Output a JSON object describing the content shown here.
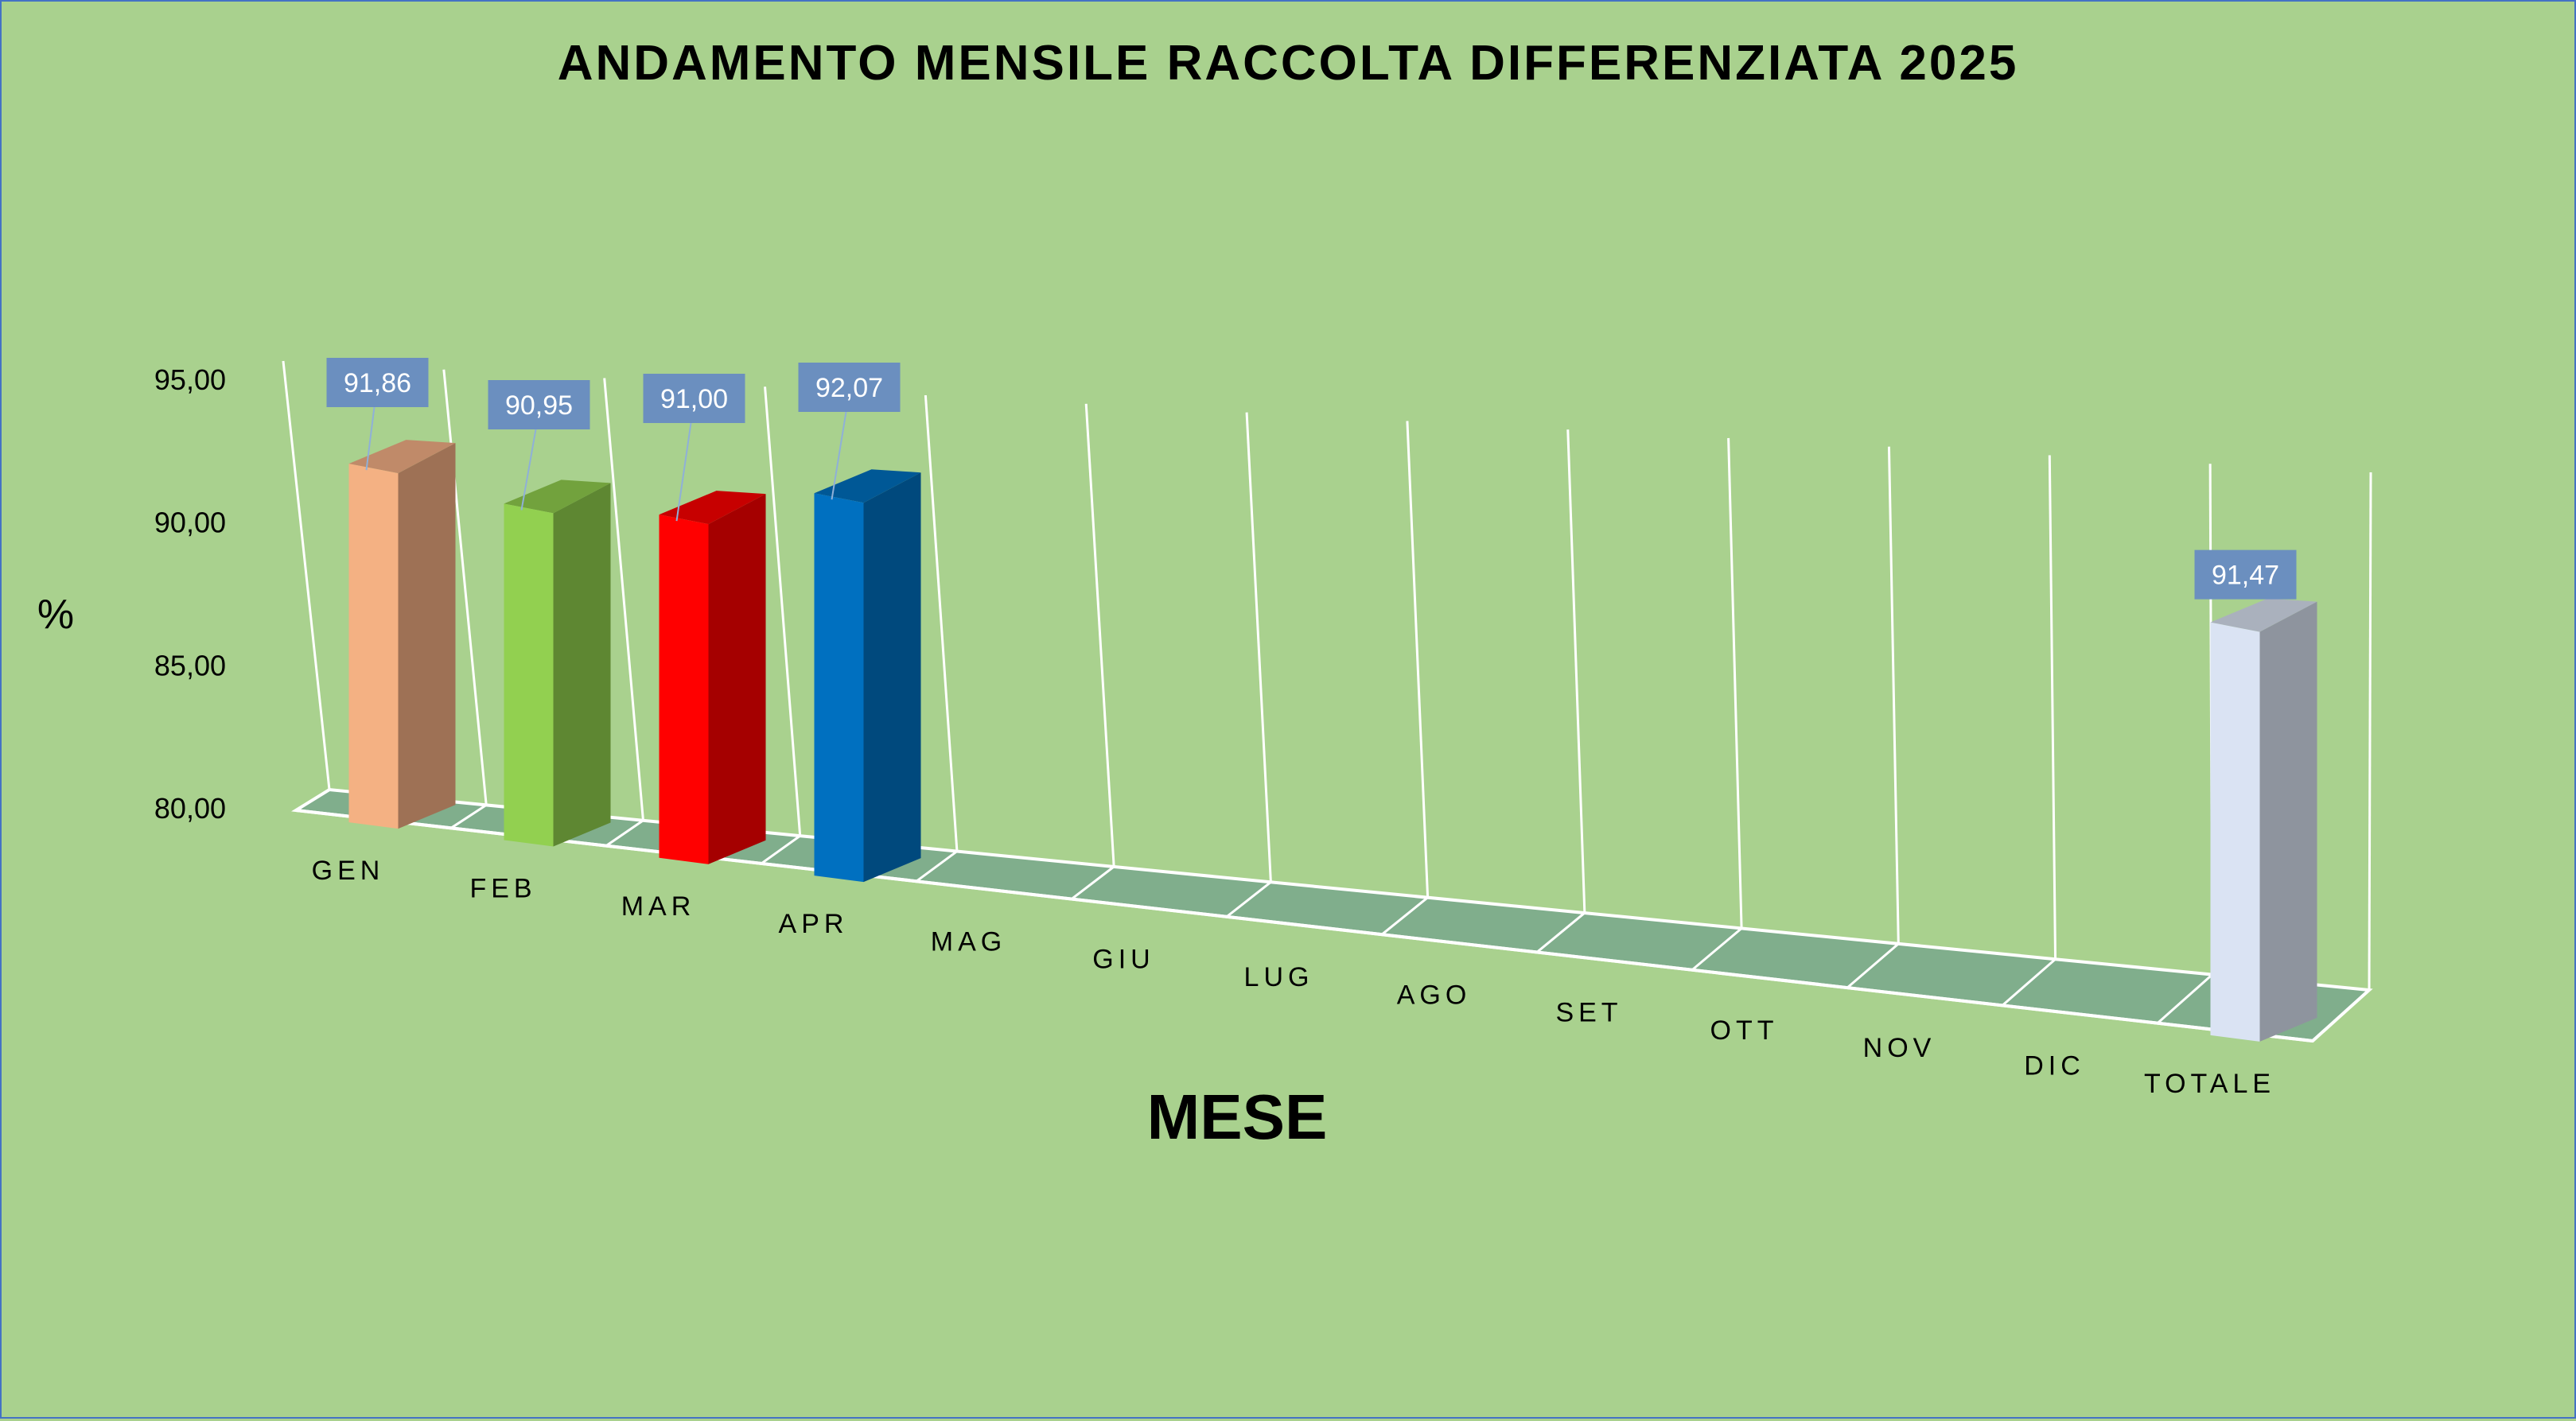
{
  "chart_data": {
    "type": "bar",
    "title": "ANDAMENTO MENSILE RACCOLTA DIFFERENZIATA 2025",
    "xlabel": "MESE",
    "ylabel": "%",
    "ylim": [
      80,
      95
    ],
    "y_ticks": [
      "80,00",
      "85,00",
      "90,00",
      "95,00"
    ],
    "categories": [
      "GEN",
      "FEB",
      "MAR",
      "APR",
      "MAG",
      "GIU",
      "LUG",
      "AGO",
      "SET",
      "OTT",
      "NOV",
      "DIC",
      "TOTALE"
    ],
    "values": [
      91.86,
      90.95,
      91.0,
      92.07,
      null,
      null,
      null,
      null,
      null,
      null,
      null,
      null,
      91.47
    ],
    "data_labels": [
      "91,86",
      "90,95",
      "91,00",
      "92,07",
      "",
      "",
      "",
      "",
      "",
      "",
      "",
      "",
      "91,47"
    ],
    "bar_colors": [
      "#f4b183",
      "#92d050",
      "#ff0000",
      "#0070c0",
      "",
      "",
      "",
      "",
      "",
      "",
      "",
      "",
      "#dae3f3"
    ],
    "side_colors": [
      "#9e7155",
      "#5e8732",
      "#a50000",
      "#00497d",
      "",
      "",
      "",
      "",
      "",
      "",
      "",
      "",
      "#8e949e"
    ],
    "top_colors": [
      "#c08a69",
      "#72a23d",
      "#c70000",
      "#005896",
      "",
      "",
      "",
      "",
      "",
      "",
      "",
      "",
      "#aab1bd"
    ],
    "grid": true,
    "legend": "none",
    "style": {
      "background": "#a9d18e",
      "floor": "#80ae8c",
      "gridline": "#ffffff",
      "label_box": "#6b8fbf"
    }
  }
}
